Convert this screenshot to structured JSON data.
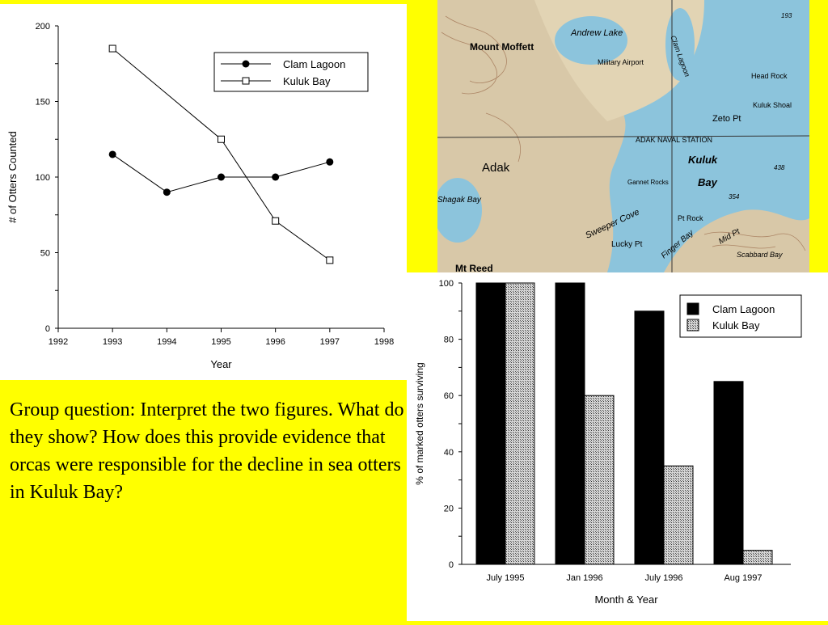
{
  "question": "Group question: Interpret the two figures.  What do they show?  How does this provide evidence that orcas were responsible for the decline in sea otters in Kuluk Bay?",
  "chart_data": [
    {
      "type": "line",
      "xlabel": "Year",
      "ylabel": "# of Otters Counted",
      "xlim": [
        1992,
        1998
      ],
      "ylim": [
        0,
        200
      ],
      "x_ticks": [
        1992,
        1993,
        1994,
        1995,
        1996,
        1997,
        1998
      ],
      "y_ticks": [
        0,
        50,
        100,
        150,
        200
      ],
      "legend_position": "top-right",
      "grid": false,
      "series": [
        {
          "name": "Clam Lagoon",
          "marker": "filled-circle",
          "x": [
            1993,
            1994,
            1995,
            1996,
            1997
          ],
          "values": [
            115,
            90,
            100,
            100,
            110
          ]
        },
        {
          "name": "Kuluk Bay",
          "marker": "open-square",
          "x": [
            1993,
            1995,
            1996,
            1997
          ],
          "values": [
            185,
            125,
            71,
            45
          ]
        }
      ]
    },
    {
      "type": "bar",
      "xlabel": "Month & Year",
      "ylabel": "% of marked otters surviving",
      "ylim": [
        0,
        100
      ],
      "y_ticks": [
        0,
        20,
        40,
        60,
        80,
        100
      ],
      "categories": [
        "July 1995",
        "Jan 1996",
        "July 1996",
        "Aug 1997"
      ],
      "legend_position": "top-right",
      "grid": false,
      "series": [
        {
          "name": "Clam Lagoon",
          "fill": "black",
          "values": [
            100,
            100,
            90,
            65
          ]
        },
        {
          "name": "Kuluk Bay",
          "fill": "stippled",
          "values": [
            100,
            60,
            35,
            5
          ]
        }
      ]
    }
  ],
  "map": {
    "labels": [
      "Mount Moffett",
      "Andrew Lake",
      "Military Airport",
      "Clam Lagoon",
      "Head Rock",
      "Kuluk Shoal",
      "Zeto Pt",
      "ADAK NAVAL STATION",
      "Kuluk",
      "Bay",
      "Adak",
      "Gannet Rocks",
      "Sweeper Cove",
      "Pt Rock",
      "Finger Bay",
      "Mid Pt",
      "Lucky Pt",
      "Scabbard Bay",
      "Shagak Bay",
      "Mt Reed",
      "193",
      "438",
      "354"
    ]
  }
}
